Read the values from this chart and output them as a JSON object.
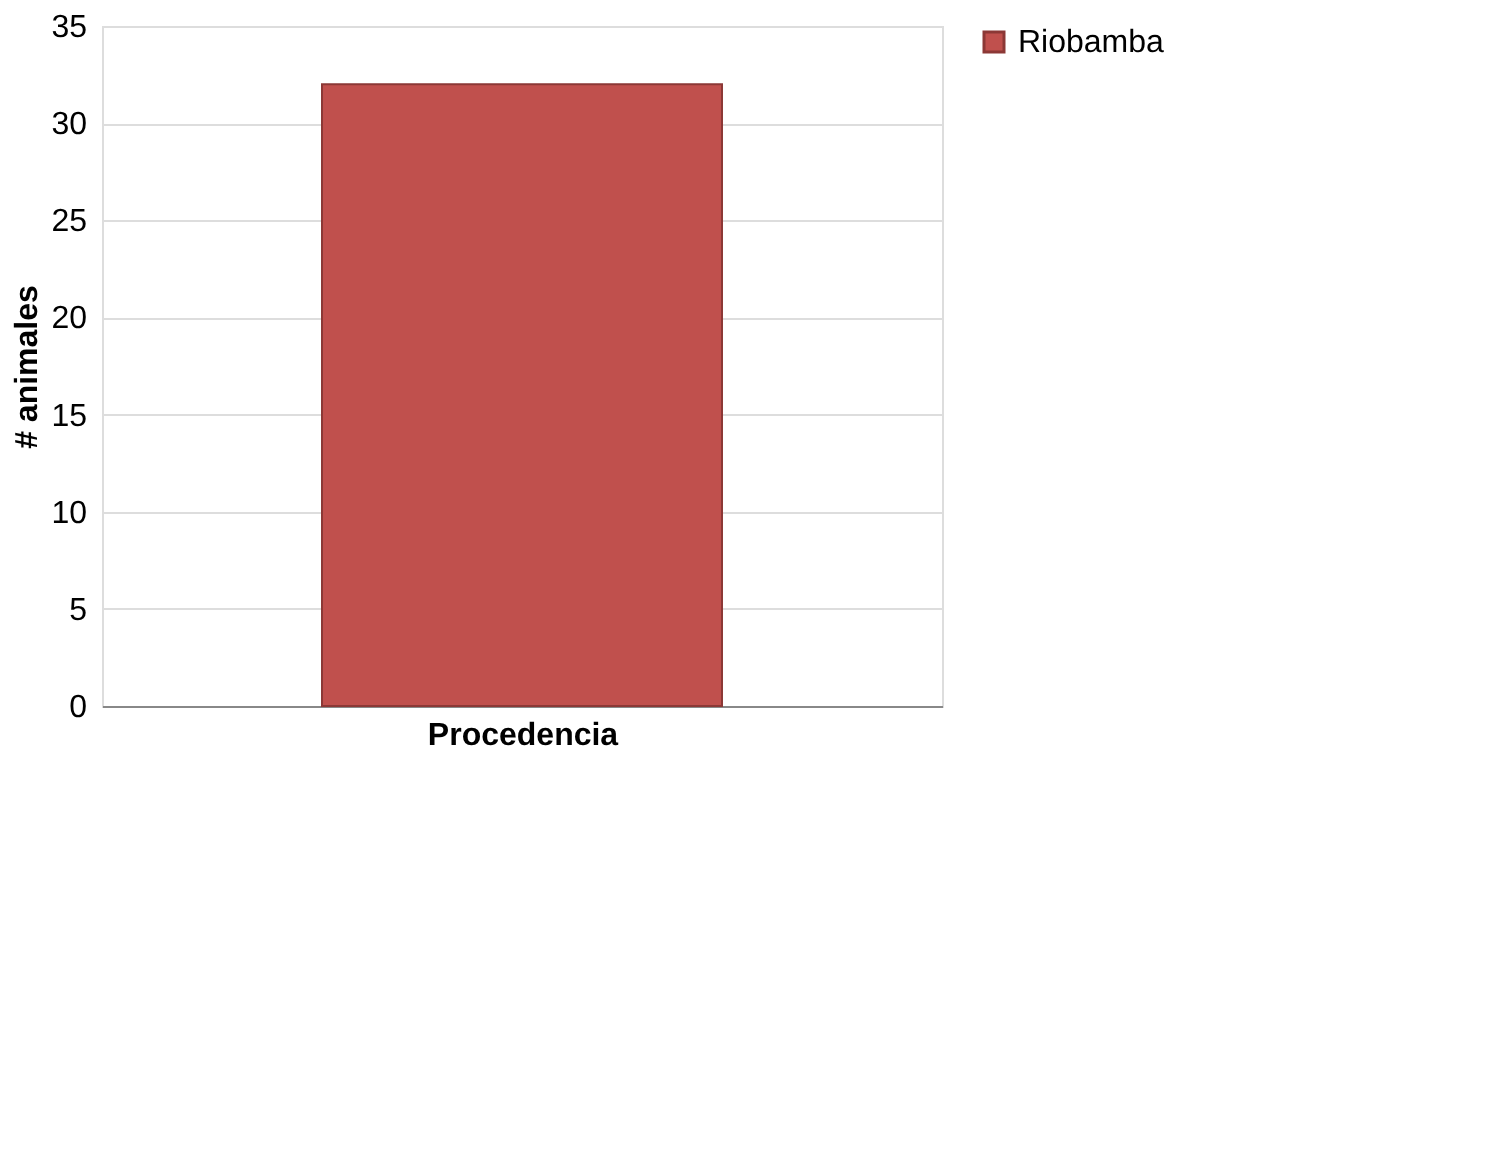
{
  "chart_data": {
    "type": "bar",
    "xlabel": "Procedencia",
    "ylabel": "# animales",
    "categories": [
      null
    ],
    "series": [
      {
        "name": "Riobamba",
        "color": "#c0504d",
        "values": [
          32
        ]
      }
    ],
    "ylim": [
      0,
      35
    ],
    "yticks": [
      0,
      5,
      10,
      15,
      20,
      25,
      30,
      35
    ],
    "grid": "y",
    "legend": "right"
  }
}
